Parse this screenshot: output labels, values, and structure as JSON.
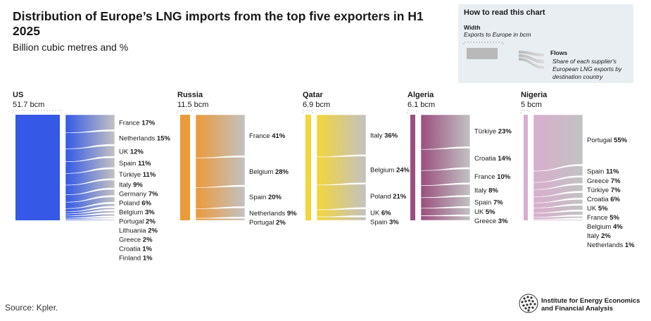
{
  "header": {
    "title": "Distribution of Europe’s LNG imports from the top five exporters in H1 2025",
    "subtitle": "Billion cubic metres and %"
  },
  "legend_box": {
    "title": "How to read this chart",
    "width_label": "Width",
    "width_desc": "Exports to Europe in bcm",
    "flows_label": "Flows",
    "flows_desc": "Share of each supplier's European LNG exports by destination country"
  },
  "colors": {
    "US": "#3559e6",
    "Russia": "#eb9a3a",
    "Qatar": "#f3d53c",
    "Algeria": "#9a4f7f",
    "Nigeria": "#d9aecd",
    "flow_end": "#c2c2c2",
    "legend_bar": "#b9b9b9"
  },
  "chart_data": {
    "type": "sankey",
    "title": "Distribution of Europe’s LNG imports from the top five exporters in H1 2025",
    "unit": "Billion cubic metres and %",
    "exporters": [
      {
        "name": "US",
        "volume_label": "51.7 bcm",
        "bcm": 51.7,
        "destinations": [
          {
            "country": "France",
            "share": 17
          },
          {
            "country": "Netherlands",
            "share": 15
          },
          {
            "country": "UK",
            "share": 12
          },
          {
            "country": "Spain",
            "share": 11
          },
          {
            "country": "Türkiye",
            "share": 11
          },
          {
            "country": "Italy",
            "share": 9
          },
          {
            "country": "Germany",
            "share": 7
          },
          {
            "country": "Poland",
            "share": 6
          },
          {
            "country": "Belgium",
            "share": 3
          },
          {
            "country": "Portugal",
            "share": 2
          },
          {
            "country": "Lithuania",
            "share": 2
          },
          {
            "country": "Greece",
            "share": 2
          },
          {
            "country": "Croatia",
            "share": 1
          },
          {
            "country": "Finland",
            "share": 1
          }
        ]
      },
      {
        "name": "Russia",
        "volume_label": "11.5 bcm",
        "bcm": 11.5,
        "destinations": [
          {
            "country": "France",
            "share": 41
          },
          {
            "country": "Belgium",
            "share": 28
          },
          {
            "country": "Spain",
            "share": 20
          },
          {
            "country": "Netherlands",
            "share": 9
          },
          {
            "country": "Portugal",
            "share": 2
          }
        ]
      },
      {
        "name": "Qatar",
        "volume_label": "6.9 bcm",
        "bcm": 6.9,
        "destinations": [
          {
            "country": "Italy",
            "share": 36
          },
          {
            "country": "Belgium",
            "share": 24
          },
          {
            "country": "Poland",
            "share": 21
          },
          {
            "country": "UK",
            "share": 6
          },
          {
            "country": "Spain",
            "share": 3
          }
        ]
      },
      {
        "name": "Algeria",
        "volume_label": "6.1 bcm",
        "bcm": 6.1,
        "destinations": [
          {
            "country": "Türkiye",
            "share": 23
          },
          {
            "country": "Croatia",
            "share": 14
          },
          {
            "country": "France",
            "share": 10
          },
          {
            "country": "Italy",
            "share": 8
          },
          {
            "country": "Spain",
            "share": 7
          },
          {
            "country": "UK",
            "share": 5
          },
          {
            "country": "Greece",
            "share": 3
          }
        ]
      },
      {
        "name": "Nigeria",
        "volume_label": "5 bcm",
        "bcm": 5,
        "destinations": [
          {
            "country": "Portugal",
            "share": 55
          },
          {
            "country": "Spain",
            "share": 11
          },
          {
            "country": "Greece",
            "share": 7
          },
          {
            "country": "Türkiye",
            "share": 7
          },
          {
            "country": "Croatia",
            "share": 6
          },
          {
            "country": "UK",
            "share": 5
          },
          {
            "country": "France",
            "share": 5
          },
          {
            "country": "Belgium",
            "share": 4
          },
          {
            "country": "Italy",
            "share": 2
          },
          {
            "country": "Netherlands",
            "share": 1
          }
        ]
      }
    ]
  },
  "footer": {
    "source": "Source: Kpler.",
    "logo_line1": "Institute for Energy Economics",
    "logo_line2": "and Financial Analysis"
  }
}
